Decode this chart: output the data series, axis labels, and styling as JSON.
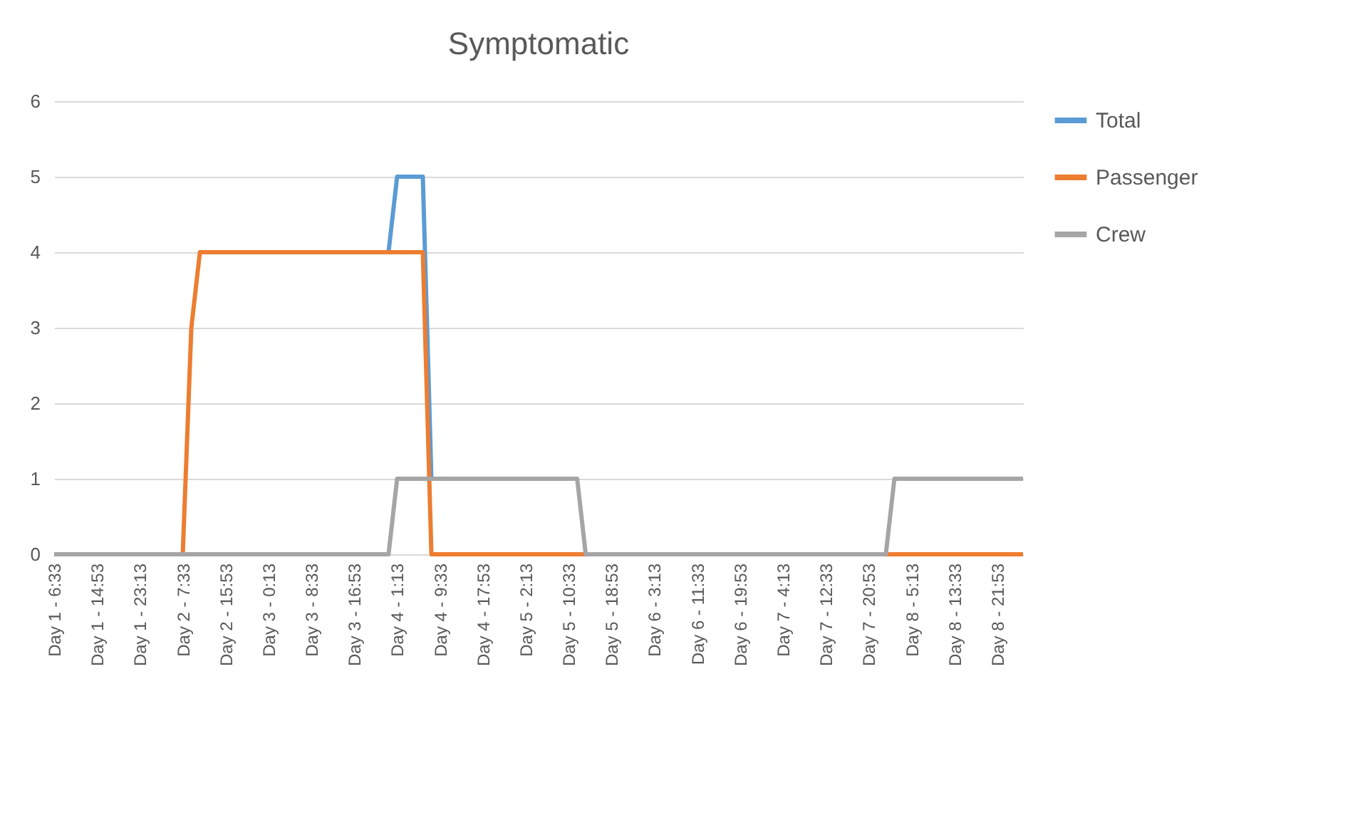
{
  "chart_data": {
    "type": "line",
    "title": "Symptomatic",
    "categories": [
      "Day 1 - 6:33",
      null,
      null,
      null,
      null,
      "Day 1 - 14:53",
      null,
      null,
      null,
      null,
      "Day 1 - 23:13",
      null,
      null,
      null,
      null,
      "Day 2 - 7:33",
      null,
      null,
      null,
      null,
      "Day 2 - 15:53",
      null,
      null,
      null,
      null,
      "Day 3 - 0:13",
      null,
      null,
      null,
      null,
      "Day 3 - 8:33",
      null,
      null,
      null,
      null,
      "Day 3 - 16:53",
      null,
      null,
      null,
      null,
      "Day 4 - 1:13",
      null,
      null,
      null,
      null,
      "Day 4 - 9:33",
      null,
      null,
      null,
      null,
      "Day 4 - 17:53",
      null,
      null,
      null,
      null,
      "Day 5 - 2:13",
      null,
      null,
      null,
      null,
      "Day 5 - 10:33",
      null,
      null,
      null,
      null,
      "Day 5 - 18:53",
      null,
      null,
      null,
      null,
      "Day 6 - 3:13",
      null,
      null,
      null,
      null,
      "Day 6 - 11:33",
      null,
      null,
      null,
      null,
      "Day 6 - 19:53",
      null,
      null,
      null,
      null,
      "Day 7 - 4:13",
      null,
      null,
      null,
      null,
      "Day 7 - 12:33",
      null,
      null,
      null,
      null,
      "Day 7 - 20:53",
      null,
      null,
      null,
      null,
      "Day 8 - 5:13",
      null,
      null,
      null,
      null,
      "Day 8 - 13:33",
      null,
      null,
      null,
      null,
      "Day 8 - 21:53",
      null,
      null,
      null
    ],
    "series": [
      {
        "name": "Total",
        "color": "#5b9bd5",
        "values": [
          null,
          null,
          null,
          null,
          null,
          null,
          null,
          null,
          null,
          null,
          null,
          null,
          null,
          null,
          null,
          null,
          null,
          null,
          null,
          null,
          null,
          null,
          null,
          null,
          null,
          null,
          null,
          null,
          null,
          null,
          null,
          null,
          null,
          null,
          null,
          null,
          null,
          null,
          null,
          4,
          5,
          5,
          5,
          5,
          1,
          null,
          null,
          null,
          null,
          null,
          null,
          null,
          null,
          null,
          null,
          null,
          null,
          null,
          null,
          null,
          null,
          null,
          null,
          null,
          null,
          null,
          null,
          null,
          null,
          null,
          null,
          null,
          null,
          null,
          null,
          null,
          null,
          null,
          null,
          null,
          null,
          null,
          null,
          null,
          null,
          null,
          null,
          null,
          null,
          null,
          null,
          null,
          null,
          null,
          null,
          null,
          null,
          null,
          null,
          null,
          null,
          null,
          null,
          null,
          null,
          null,
          null,
          null,
          null,
          null,
          null,
          null,
          null,
          null
        ]
      },
      {
        "name": "Passenger",
        "color": "#ed7d31",
        "values": [
          null,
          null,
          null,
          null,
          null,
          null,
          null,
          null,
          null,
          null,
          null,
          null,
          null,
          0,
          0,
          0,
          3,
          4,
          4,
          4,
          4,
          4,
          4,
          4,
          4,
          4,
          4,
          4,
          4,
          4,
          4,
          4,
          4,
          4,
          4,
          4,
          4,
          4,
          4,
          4,
          4,
          4,
          4,
          4,
          0,
          0,
          0,
          0,
          0,
          0,
          0,
          0,
          0,
          0,
          0,
          0,
          0,
          0,
          0,
          0,
          0,
          0,
          0,
          0,
          0,
          0,
          0,
          0,
          0,
          0,
          0,
          0,
          0,
          0,
          0,
          0,
          0,
          0,
          0,
          0,
          0,
          0,
          0,
          0,
          0,
          0,
          0,
          0,
          0,
          0,
          0,
          0,
          0,
          0,
          0,
          0,
          0,
          0,
          0,
          0,
          0,
          0,
          0,
          0,
          0,
          0,
          0,
          0,
          0,
          0,
          0,
          0,
          0,
          0
        ]
      },
      {
        "name": "Crew",
        "color": "#a5a5a5",
        "values": [
          0,
          0,
          0,
          0,
          0,
          0,
          0,
          0,
          0,
          0,
          0,
          0,
          0,
          0,
          0,
          0,
          0,
          0,
          0,
          0,
          0,
          0,
          0,
          0,
          0,
          0,
          0,
          0,
          0,
          0,
          0,
          0,
          0,
          0,
          0,
          0,
          0,
          0,
          0,
          0,
          1,
          1,
          1,
          1,
          1,
          1,
          1,
          1,
          1,
          1,
          1,
          1,
          1,
          1,
          1,
          1,
          1,
          1,
          1,
          1,
          1,
          1,
          0,
          0,
          0,
          0,
          0,
          0,
          0,
          0,
          0,
          0,
          0,
          0,
          0,
          0,
          0,
          0,
          0,
          0,
          0,
          0,
          0,
          0,
          0,
          0,
          0,
          0,
          0,
          0,
          0,
          0,
          0,
          0,
          0,
          0,
          0,
          0,
          1,
          1,
          1,
          1,
          1,
          1,
          1,
          1,
          1,
          1,
          1,
          1,
          1,
          1,
          1,
          1
        ]
      }
    ],
    "ylim": [
      0,
      6
    ],
    "yticks": [
      0,
      1,
      2,
      3,
      4,
      5,
      6
    ],
    "grid": "y",
    "legend": "right",
    "marker": "none",
    "line_style": "solid"
  }
}
